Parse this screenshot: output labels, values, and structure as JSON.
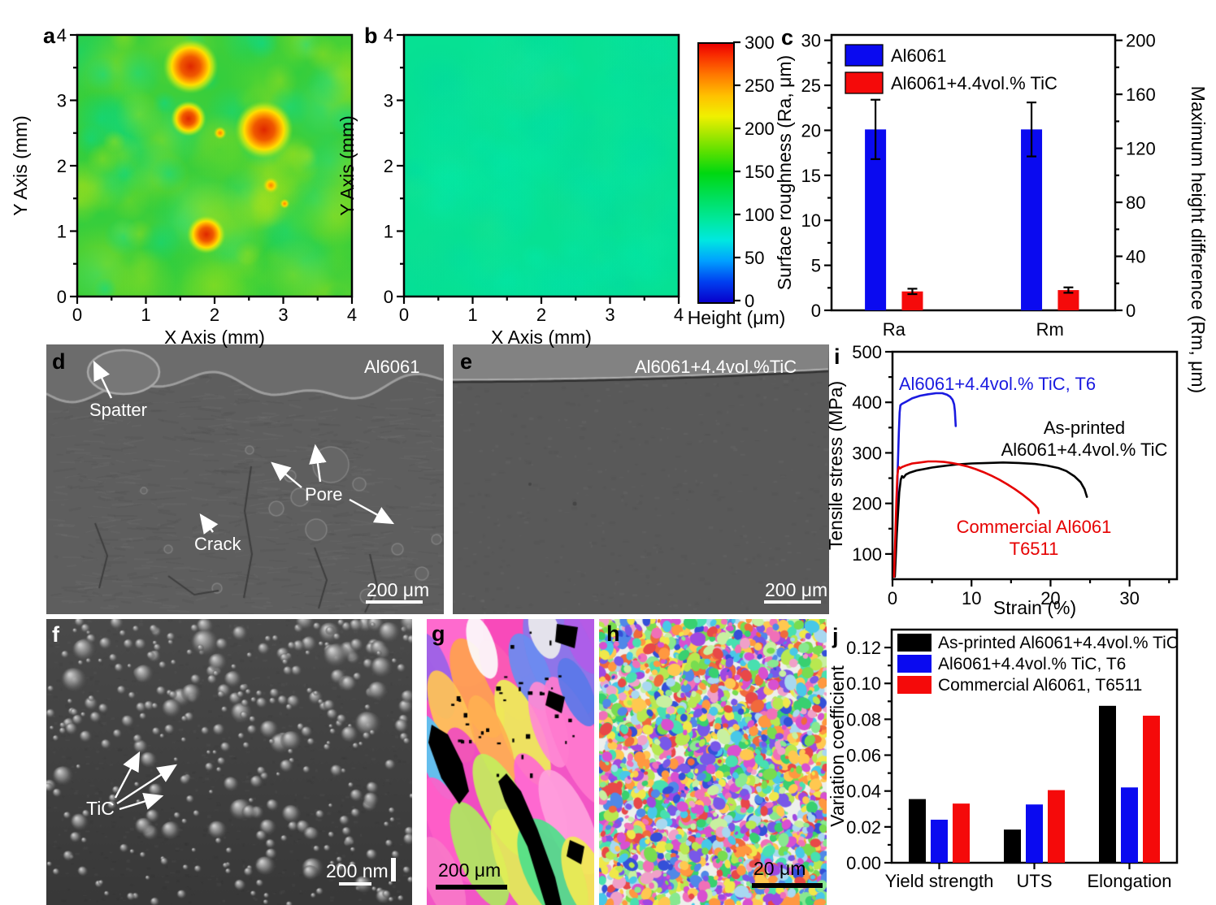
{
  "panels": {
    "a": {
      "label": "a",
      "xlabel": "X Axis (mm)",
      "ylabel": "Y Axis (mm)",
      "xticks": [
        "0",
        "1",
        "2",
        "3",
        "4"
      ],
      "yticks": [
        "0",
        "1",
        "2",
        "3",
        "4"
      ],
      "xlim": [
        0,
        4
      ],
      "ylim": [
        0,
        4
      ],
      "red_spots_xy_mm": [
        [
          1.65,
          3.52
        ],
        [
          1.62,
          2.72
        ],
        [
          2.72,
          2.55
        ],
        [
          1.88,
          0.95
        ]
      ]
    },
    "b": {
      "label": "b",
      "xlabel": "X Axis (mm)",
      "ylabel": "Y Axis (mm)",
      "xticks": [
        "0",
        "1",
        "2",
        "3",
        "4"
      ],
      "yticks": [
        "0",
        "1",
        "2",
        "3",
        "4"
      ],
      "xlim": [
        0,
        4
      ],
      "ylim": [
        0,
        4
      ]
    },
    "colorbar": {
      "title": "Height (μm)",
      "lim": [
        0,
        300
      ],
      "ticks": [
        "0",
        "50",
        "100",
        "150",
        "200",
        "250",
        "300"
      ],
      "stops": [
        "#0800cc",
        "#0040f0",
        "#00a0ff",
        "#00e8e0",
        "#00e89c",
        "#00e060",
        "#00d810",
        "#58e000",
        "#b0e800",
        "#f0f000",
        "#ffc000",
        "#ff7800",
        "#f82800",
        "#e80000"
      ],
      "stop_pos": [
        0,
        8,
        16,
        24,
        32,
        40,
        50,
        58,
        66,
        72,
        80,
        88,
        96,
        100
      ]
    },
    "c": {
      "label": "c"
    },
    "d": {
      "label": "d",
      "tag": "Al6061",
      "ann_spatter": "Spatter",
      "ann_pore": "Pore",
      "ann_crack": "Crack",
      "scalebar": "200 μm"
    },
    "e": {
      "label": "e",
      "tag": "Al6061+4.4vol.%TiC",
      "scalebar": "200 μm"
    },
    "f": {
      "label": "f",
      "ann_tic": "TiC",
      "scalebar": "200 nm"
    },
    "g": {
      "label": "g",
      "scalebar": "200 μm"
    },
    "h": {
      "label": "h",
      "scalebar": "20 μm"
    },
    "i": {
      "label": "i"
    },
    "j": {
      "label": "j"
    }
  },
  "chart_data": [
    {
      "id": "c",
      "panel": "c",
      "type": "bar",
      "legend_position": "top-left",
      "grid": false,
      "categories": [
        "Ra",
        "Rm"
      ],
      "left_axis": {
        "label": "Surface roughness (Ra, μm)",
        "ylim": [
          0,
          30
        ],
        "ticks": [
          "0",
          "5",
          "10",
          "15",
          "20",
          "25",
          "30"
        ]
      },
      "right_axis": {
        "label": "Maximum height difference (Rm, μm)",
        "ylim": [
          0,
          200
        ],
        "ticks": [
          "0",
          "40",
          "80",
          "120",
          "160",
          "200"
        ]
      },
      "series": [
        {
          "name": "Al6061",
          "color": "#0a0af0",
          "bars": [
            {
              "category": "Ra",
              "axis": "left",
              "value": 20.1,
              "err": 3.3
            },
            {
              "category": "Rm",
              "axis": "right",
              "value": 134,
              "err": 20
            }
          ]
        },
        {
          "name": "Al6061+4.4vol.% TiC",
          "color": "#f50a0a",
          "bars": [
            {
              "category": "Ra",
              "axis": "left",
              "value": 2.1,
              "err": 0.3
            },
            {
              "category": "Rm",
              "axis": "right",
              "value": 15,
              "err": 2
            }
          ]
        }
      ]
    },
    {
      "id": "i",
      "panel": "i",
      "type": "line",
      "grid": false,
      "xlabel": "Strain (%)",
      "ylabel": "Tensile stress (MPa)",
      "xlim": [
        0,
        36
      ],
      "ylim": [
        50,
        500
      ],
      "xticks": [
        "0",
        "10",
        "20",
        "30"
      ],
      "yticks": [
        "100",
        "200",
        "300",
        "400",
        "500"
      ],
      "series": [
        {
          "name": "Al6061+4.4vol.% TiC, T6",
          "color": "#1a1ae0",
          "label_lines": [
            "Al6061+4.4vol.% TiC, T6"
          ],
          "points": [
            [
              0.25,
              55
            ],
            [
              0.5,
              160
            ],
            [
              0.65,
              260
            ],
            [
              0.8,
              340
            ],
            [
              0.9,
              380
            ],
            [
              1.0,
              394
            ],
            [
              1.2,
              397
            ],
            [
              1.7,
              401
            ],
            [
              2.5,
              408
            ],
            [
              3.5,
              413
            ],
            [
              4.5,
              416
            ],
            [
              5.5,
              418
            ],
            [
              6.3,
              418
            ],
            [
              6.9,
              415
            ],
            [
              7.3,
              411
            ],
            [
              7.6,
              405
            ],
            [
              7.8,
              396
            ],
            [
              7.9,
              382
            ],
            [
              7.95,
              367
            ],
            [
              8.0,
              353
            ]
          ]
        },
        {
          "name": "As-printed Al6061+4.4vol.% TiC",
          "color": "#000000",
          "label_lines": [
            "As-printed",
            "Al6061+4.4vol.% TiC"
          ],
          "points": [
            [
              0.3,
              55
            ],
            [
              0.55,
              140
            ],
            [
              0.85,
              222
            ],
            [
              1.05,
              247
            ],
            [
              1.2,
              254
            ],
            [
              1.4,
              251
            ],
            [
              1.7,
              257
            ],
            [
              2.2,
              261
            ],
            [
              3,
              265
            ],
            [
              4,
              268
            ],
            [
              5,
              271
            ],
            [
              6,
              273
            ],
            [
              7,
              275
            ],
            [
              8,
              277
            ],
            [
              10,
              279
            ],
            [
              12,
              280
            ],
            [
              14,
              281
            ],
            [
              16,
              280
            ],
            [
              18,
              278
            ],
            [
              19.5,
              275
            ],
            [
              21,
              270
            ],
            [
              22,
              264
            ],
            [
              23,
              254
            ],
            [
              23.8,
              242
            ],
            [
              24.3,
              228
            ],
            [
              24.6,
              213
            ]
          ]
        },
        {
          "name": "Commercial Al6061, T6511",
          "color": "#e60000",
          "label_lines": [
            "Commercial Al6061",
            "T6511"
          ],
          "points": [
            [
              0.2,
              55
            ],
            [
              0.35,
              130
            ],
            [
              0.5,
              210
            ],
            [
              0.62,
              255
            ],
            [
              0.72,
              268
            ],
            [
              0.82,
              272
            ],
            [
              0.95,
              269
            ],
            [
              1.2,
              272
            ],
            [
              1.7,
              275
            ],
            [
              2.5,
              279
            ],
            [
              3.5,
              281
            ],
            [
              4.5,
              283
            ],
            [
              5.5,
              283
            ],
            [
              6.5,
              282
            ],
            [
              7.5,
              280
            ],
            [
              8.5,
              277
            ],
            [
              9.5,
              273
            ],
            [
              10.5,
              268
            ],
            [
              11.5,
              262
            ],
            [
              12.5,
              255
            ],
            [
              13.5,
              247
            ],
            [
              14.5,
              238
            ],
            [
              15.5,
              228
            ],
            [
              16.5,
              217
            ],
            [
              17.3,
              207
            ],
            [
              18,
              197
            ],
            [
              18.4,
              190
            ],
            [
              18.5,
              181
            ]
          ]
        }
      ]
    },
    {
      "id": "j",
      "panel": "j",
      "type": "bar",
      "legend_position": "top-left",
      "grid": false,
      "ylabel": "Variation coefficient",
      "ylim": [
        0,
        0.13
      ],
      "yticks": [
        "0.00",
        "0.02",
        "0.04",
        "0.06",
        "0.08",
        "0.10",
        "0.12"
      ],
      "categories": [
        "Yield strength",
        "UTS",
        "Elongation"
      ],
      "series": [
        {
          "name": "As-printed Al6061+4.4vol.% TiC",
          "color": "#000000",
          "values": [
            0.0355,
            0.0185,
            0.0875
          ]
        },
        {
          "name": "Al6061+4.4vol.% TiC, T6",
          "color": "#0a0af0",
          "values": [
            0.024,
            0.0325,
            0.042
          ]
        },
        {
          "name": "Commercial Al6061, T6511",
          "color": "#f50a0a",
          "values": [
            0.033,
            0.0405,
            0.082
          ]
        }
      ]
    }
  ]
}
